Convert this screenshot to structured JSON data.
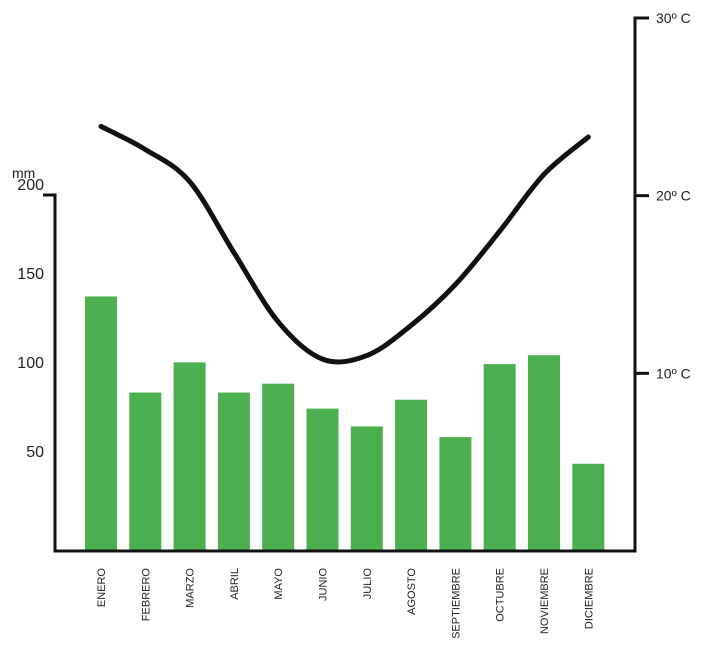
{
  "chart_data": {
    "type": "bar",
    "categories": [
      "ENERO",
      "FEBRERO",
      "MARZO",
      "ABRIL",
      "MAYO",
      "JUNIO",
      "JULIO",
      "AGOSTO",
      "SEPTIEMBRE",
      "OCTUBRE",
      "NOVIEMBRE",
      "DICIEMBRE"
    ],
    "series": [
      {
        "values": [
          143,
          89,
          106,
          89,
          94,
          80,
          70,
          85,
          64,
          105,
          110,
          49
        ],
        "color": "#4caf50",
        "axis": "left"
      },
      {
        "type": "line",
        "values": [
          23.9,
          22.6,
          20.8,
          16.8,
          12.9,
          10.8,
          11.0,
          12.7,
          15.0,
          18.0,
          21.2,
          23.3
        ],
        "color": "#111111",
        "axis": "right"
      }
    ],
    "left_axis": {
      "unit_label": "mm",
      "ticks": [
        "50",
        "100",
        "150",
        "200"
      ],
      "range": [
        0,
        200
      ]
    },
    "right_axis": {
      "ticks": [
        "10º C",
        "20º C",
        "30º C"
      ],
      "range": [
        0,
        30
      ]
    },
    "grid": false,
    "legend": "none"
  }
}
